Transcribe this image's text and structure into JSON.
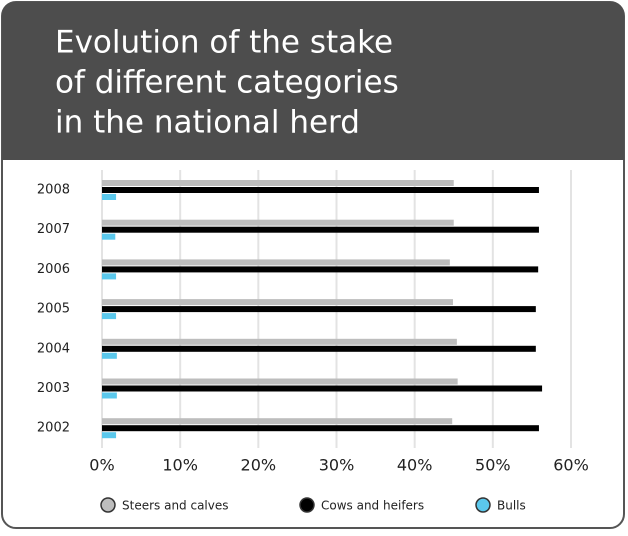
{
  "chart_data": {
    "type": "bar",
    "orientation": "horizontal",
    "title": [
      "Evolution of the stake",
      "of different categories",
      "in the national herd"
    ],
    "categories": [
      "2008",
      "2007",
      "2006",
      "2005",
      "2004",
      "2003",
      "2002"
    ],
    "series": [
      {
        "name": "Steers and calves",
        "color": "#bdbdbd",
        "values": [
          45,
          45,
          44.5,
          44.9,
          45.4,
          45.5,
          44.8
        ]
      },
      {
        "name": "Cows and heifers",
        "color": "#000000",
        "values": [
          55.9,
          55.9,
          55.8,
          55.5,
          55.5,
          56.3,
          55.9
        ]
      },
      {
        "name": "Bulls",
        "color": "#5bc8ec",
        "values": [
          1.8,
          1.7,
          1.8,
          1.8,
          1.9,
          1.9,
          1.8
        ]
      }
    ],
    "xlim": [
      0,
      60
    ],
    "xticks": [
      {
        "value": 0,
        "label": "0%"
      },
      {
        "value": 10,
        "label": "10%"
      },
      {
        "value": 20,
        "label": "20%"
      },
      {
        "value": 30,
        "label": "30%"
      },
      {
        "value": 40,
        "label": "40%"
      },
      {
        "value": 50,
        "label": "50%"
      },
      {
        "value": 60,
        "label": "60%"
      }
    ],
    "grid": true,
    "legend": "bottom"
  }
}
